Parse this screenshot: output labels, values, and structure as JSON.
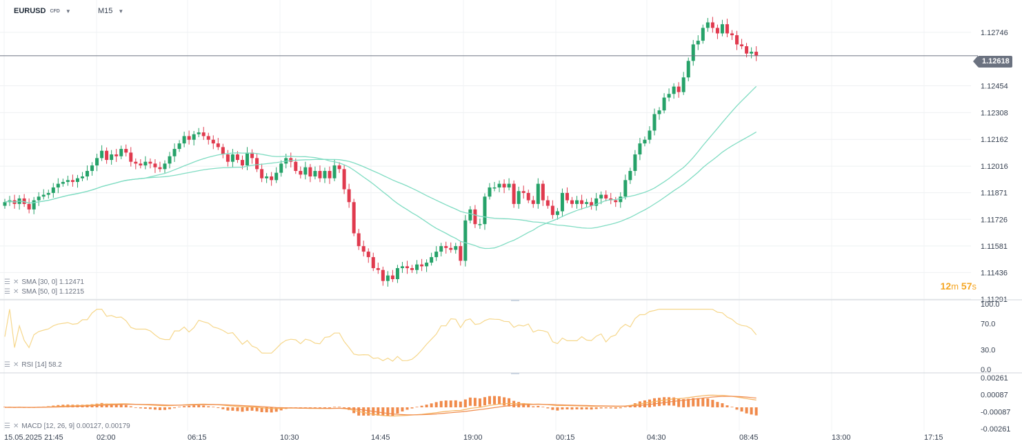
{
  "header": {
    "symbol": "EURUSD",
    "symbol_type": "CFD",
    "timeframe": "M15",
    "dropdown_icon": "caret-down-icon"
  },
  "current_price": "1.12618",
  "timer": {
    "minutes": "12",
    "m": "m",
    "seconds": "57",
    "s": "s"
  },
  "indicators": {
    "sma30": "SMA [30, 0] 1.12471",
    "sma50": "SMA [50, 0] 1.12215",
    "rsi": "RSI [14] 58.2",
    "macd": "MACD [12, 26, 9] 0.00127,  0.00179"
  },
  "price_axis": [
    "1.12746",
    "1.12454",
    "1.12308",
    "1.12162",
    "1.12016",
    "1.11871",
    "1.11726",
    "1.11581",
    "1.11436",
    "1.11291"
  ],
  "rsi_axis": [
    "100.0",
    "70.0",
    "30.0",
    "0.0"
  ],
  "macd_axis": [
    "0.00261",
    "0.00087",
    "-0.00087",
    "-0.00261"
  ],
  "time_axis": [
    "15.05.2025  21:45",
    "02:00",
    "06:15",
    "10:30",
    "14:45",
    "19:00",
    "00:15",
    "04:30",
    "08:45",
    "13:00",
    "17:15"
  ],
  "colors": {
    "up": "#26a269",
    "down": "#e03a4e",
    "sma": "#7fdcc2",
    "rsi": "#f6d78b",
    "macd": "#f08a4b",
    "signal": "#f5b15c",
    "hist": "#f08a4b"
  },
  "chart_data": {
    "type": "candlestick",
    "price_range": [
      1.11291,
      1.12892
    ],
    "closes": [
      1.1182,
      1.1183,
      1.1181,
      1.1184,
      1.1181,
      1.1178,
      1.1183,
      1.1185,
      1.1186,
      1.1187,
      1.119,
      1.1192,
      1.1193,
      1.1194,
      1.1193,
      1.1195,
      1.1196,
      1.1199,
      1.1202,
      1.1206,
      1.121,
      1.1205,
      1.1208,
      1.1207,
      1.1211,
      1.1209,
      1.1204,
      1.1203,
      1.1202,
      1.1204,
      1.1203,
      1.1201,
      1.12,
      1.1203,
      1.1207,
      1.1211,
      1.1214,
      1.1218,
      1.1216,
      1.1219,
      1.122,
      1.1218,
      1.1216,
      1.1214,
      1.1212,
      1.1208,
      1.1204,
      1.1208,
      1.1205,
      1.1202,
      1.1209,
      1.1206,
      1.12,
      1.1195,
      1.1196,
      1.1194,
      1.1198,
      1.1203,
      1.1206,
      1.1204,
      1.1199,
      1.1197,
      1.1201,
      1.1196,
      1.1199,
      1.1195,
      1.1199,
      1.1195,
      1.1202,
      1.12,
      1.1189,
      1.1182,
      1.1165,
      1.1158,
      1.1155,
      1.1152,
      1.1146,
      1.1145,
      1.1139,
      1.1142,
      1.114,
      1.1146,
      1.1147,
      1.1146,
      1.1145,
      1.1148,
      1.1147,
      1.1149,
      1.1152,
      1.1155,
      1.1158,
      1.1157,
      1.1156,
      1.1158,
      1.115,
      1.1172,
      1.1178,
      1.117,
      1.117,
      1.1185,
      1.119,
      1.119,
      1.1192,
      1.119,
      1.1192,
      1.1181,
      1.1188,
      1.1187,
      1.1183,
      1.1181,
      1.1192,
      1.1183,
      1.118,
      1.1175,
      1.1177,
      1.1187,
      1.1183,
      1.1181,
      1.1183,
      1.1181,
      1.1182,
      1.118,
      1.1184,
      1.1186,
      1.1184,
      1.1183,
      1.1182,
      1.1185,
      1.1194,
      1.1199,
      1.1208,
      1.1214,
      1.1216,
      1.1221,
      1.123,
      1.1232,
      1.1239,
      1.1241,
      1.1245,
      1.1242,
      1.125,
      1.1259,
      1.1268,
      1.127,
      1.1277,
      1.128,
      1.1277,
      1.1274,
      1.1279,
      1.1274,
      1.1273,
      1.1268,
      1.1267,
      1.1263,
      1.1264,
      1.1262
    ],
    "sma30": "follows recent closes (last value 1.12471)",
    "sma50": "slower average (last value 1.12215)",
    "rsi_last": 58.2,
    "macd_last": 0.00127,
    "signal_last": 0.00179
  }
}
